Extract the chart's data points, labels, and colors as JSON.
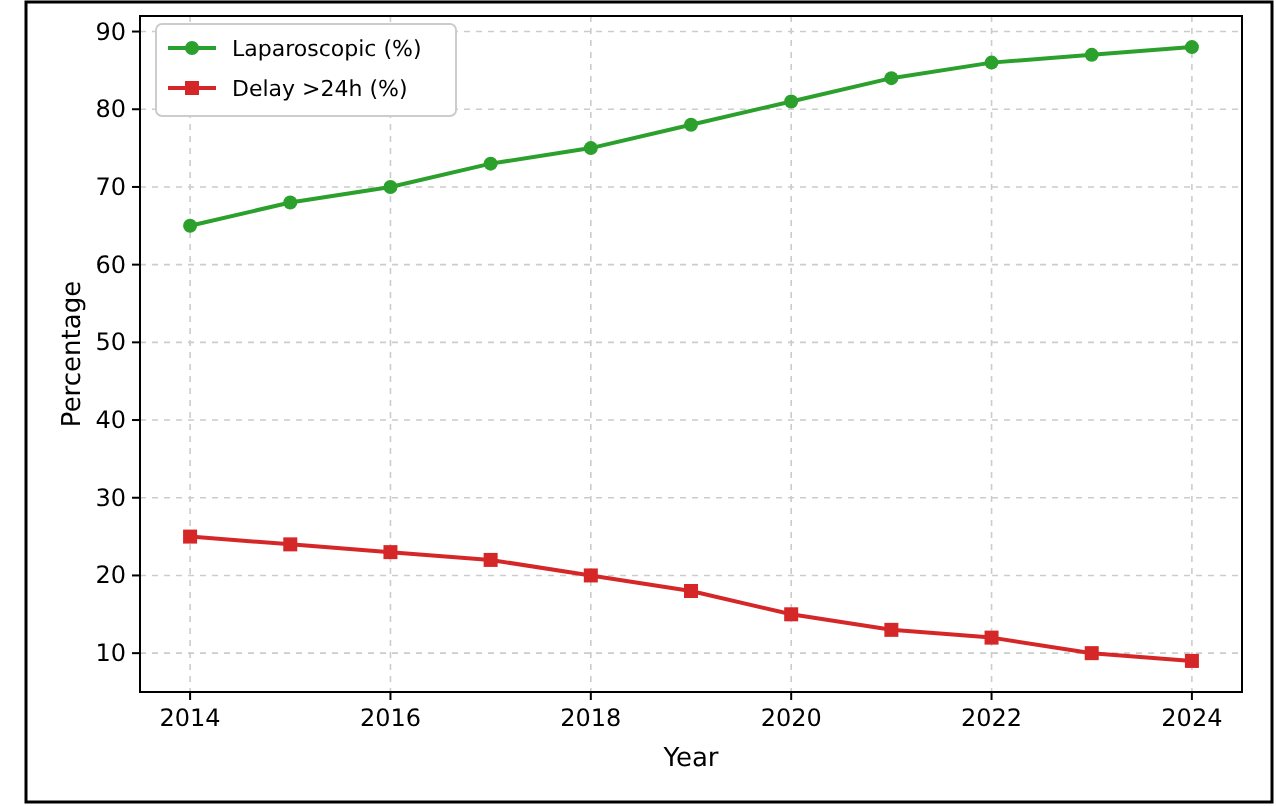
{
  "chart_data": {
    "type": "line",
    "xlabel": "Year",
    "ylabel": "Percentage",
    "x": [
      2014,
      2015,
      2016,
      2017,
      2018,
      2019,
      2020,
      2021,
      2022,
      2023,
      2024
    ],
    "series": [
      {
        "name": "Laparoscopic (%)",
        "color": "#2ca02c",
        "marker": "circle",
        "values": [
          65,
          68,
          70,
          73,
          75,
          78,
          81,
          84,
          86,
          87,
          88
        ]
      },
      {
        "name": "Delay >24h (%)",
        "color": "#d62728",
        "marker": "square",
        "values": [
          25,
          24,
          23,
          22,
          20,
          18,
          15,
          13,
          12,
          10,
          9
        ]
      }
    ],
    "xlim": [
      2013.5,
      2024.5
    ],
    "xticks": [
      2014,
      2016,
      2018,
      2020,
      2022,
      2024
    ],
    "ylim": [
      5,
      92
    ],
    "yticks": [
      10,
      20,
      30,
      40,
      50,
      60,
      70,
      80,
      90
    ],
    "grid": true,
    "legend": "top left",
    "line_style": "solid"
  }
}
